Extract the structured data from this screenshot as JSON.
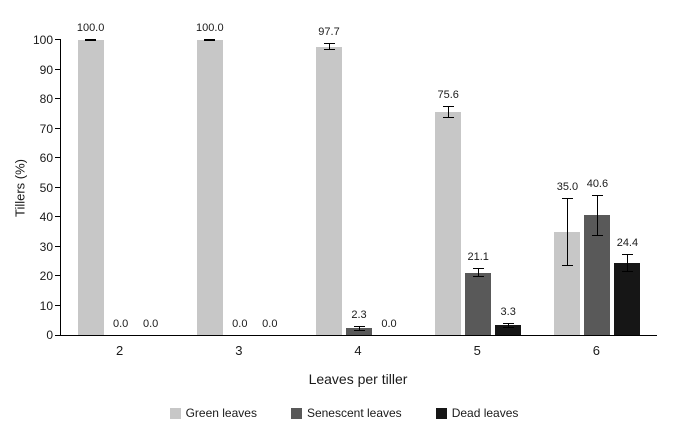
{
  "chart_data": {
    "type": "bar",
    "title": "",
    "xlabel": "Leaves per tiller",
    "ylabel": "Tillers (%)",
    "ylim": [
      0,
      100
    ],
    "ytick_step": 10,
    "grid": false,
    "legend_position": "bottom",
    "categories": [
      "2",
      "3",
      "4",
      "5",
      "6"
    ],
    "series": [
      {
        "name": "Green leaves",
        "color": "#c7c7c7",
        "values": [
          100.0,
          100.0,
          97.7,
          75.6,
          35.0
        ],
        "errors": [
          0.4,
          0.4,
          1.2,
          2.0,
          11.5
        ]
      },
      {
        "name": "Senescent leaves",
        "color": "#595959",
        "values": [
          0.0,
          0.0,
          2.3,
          21.1,
          40.6
        ],
        "errors": [
          0,
          0,
          0.8,
          1.5,
          7.0
        ]
      },
      {
        "name": "Dead leaves",
        "color": "#161616",
        "values": [
          0.0,
          0.0,
          0.0,
          3.3,
          24.4
        ],
        "errors": [
          0,
          0,
          0,
          0.8,
          3.0
        ]
      }
    ],
    "value_labels": [
      [
        "100.0",
        "100.0",
        "97.7",
        "75.6",
        "35.0"
      ],
      [
        "0.0",
        "0.0",
        "2.3",
        "21.1",
        "40.6"
      ],
      [
        "0.0",
        "0.0",
        "0.0",
        "3.3",
        "24.4"
      ]
    ],
    "legend": [
      "Green leaves",
      "Senescent leaves",
      "Dead leaves"
    ]
  }
}
